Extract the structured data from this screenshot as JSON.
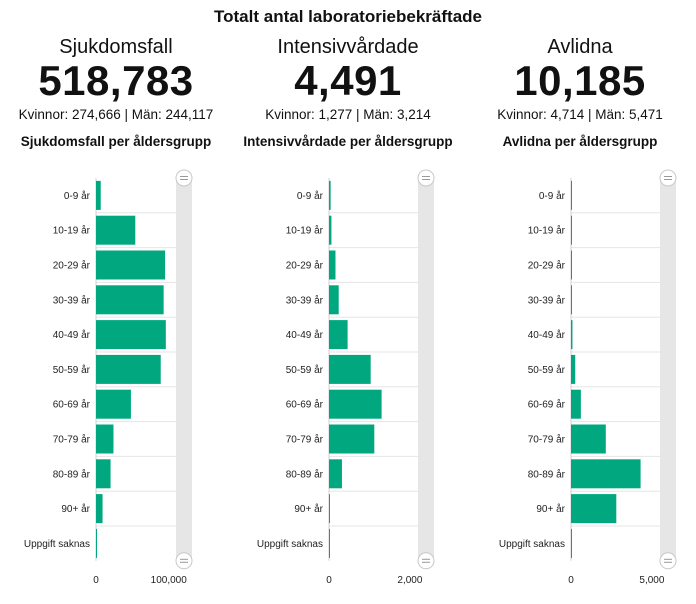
{
  "header": {
    "title": "Totalt antal laboratoriebekräftade"
  },
  "panels": [
    {
      "title": "Sjukdomsfall",
      "total": "518,783",
      "split": "Kvinnor: 274,666 | Män: 244,117",
      "chart_title": "Sjukdomsfall per åldersgrupp"
    },
    {
      "title": "Intensivvårdade",
      "total": "4,491",
      "split": "Kvinnor: 1,277 | Män: 3,214",
      "chart_title": "Intensivvårdade per åldersgrupp"
    },
    {
      "title": "Avlidna",
      "total": "10,185",
      "split": "Kvinnor: 4,714 | Män: 5,471",
      "chart_title": "Avlidna per åldersgrupp"
    }
  ],
  "colors": {
    "bar": "#00a77f",
    "grid": "#e5e5e5",
    "axis": "#d0d0d0"
  },
  "chart_data": [
    {
      "type": "bar",
      "orientation": "horizontal",
      "title": "Sjukdomsfall per åldersgrupp",
      "categories": [
        "0-9 år",
        "10-19 år",
        "20-29 år",
        "30-39 år",
        "40-49 år",
        "50-59 år",
        "60-69 år",
        "70-79 år",
        "80-89 år",
        "90+ år",
        "Uppgift saknas"
      ],
      "values": [
        6500,
        54000,
        95000,
        93000,
        96000,
        89000,
        48000,
        24000,
        20000,
        9000,
        300
      ],
      "xlim": [
        0,
        110000
      ],
      "xticks": [
        0,
        100000
      ],
      "xtick_labels": [
        "0",
        "100,000"
      ]
    },
    {
      "type": "bar",
      "orientation": "horizontal",
      "title": "Intensivvårdade per åldersgrupp",
      "categories": [
        "0-9 år",
        "10-19 år",
        "20-29 år",
        "30-39 år",
        "40-49 år",
        "50-59 år",
        "60-69 år",
        "70-79 år",
        "80-89 år",
        "90+ år",
        "Uppgift saknas"
      ],
      "values": [
        40,
        60,
        160,
        240,
        460,
        1030,
        1300,
        1120,
        320,
        15,
        5
      ],
      "xlim": [
        0,
        2200
      ],
      "xticks": [
        0,
        2000
      ],
      "xtick_labels": [
        "0",
        "2,000"
      ]
    },
    {
      "type": "bar",
      "orientation": "horizontal",
      "title": "Avlidna per åldersgrupp",
      "categories": [
        "0-9 år",
        "10-19 år",
        "20-29 år",
        "30-39 år",
        "40-49 år",
        "50-59 år",
        "60-69 år",
        "70-79 år",
        "80-89 år",
        "90+ år",
        "Uppgift saknas"
      ],
      "values": [
        3,
        5,
        12,
        25,
        90,
        260,
        610,
        2150,
        4300,
        2800,
        5
      ],
      "xlim": [
        0,
        5500
      ],
      "xticks": [
        0,
        5000
      ],
      "xtick_labels": [
        "0",
        "5,000"
      ]
    }
  ]
}
